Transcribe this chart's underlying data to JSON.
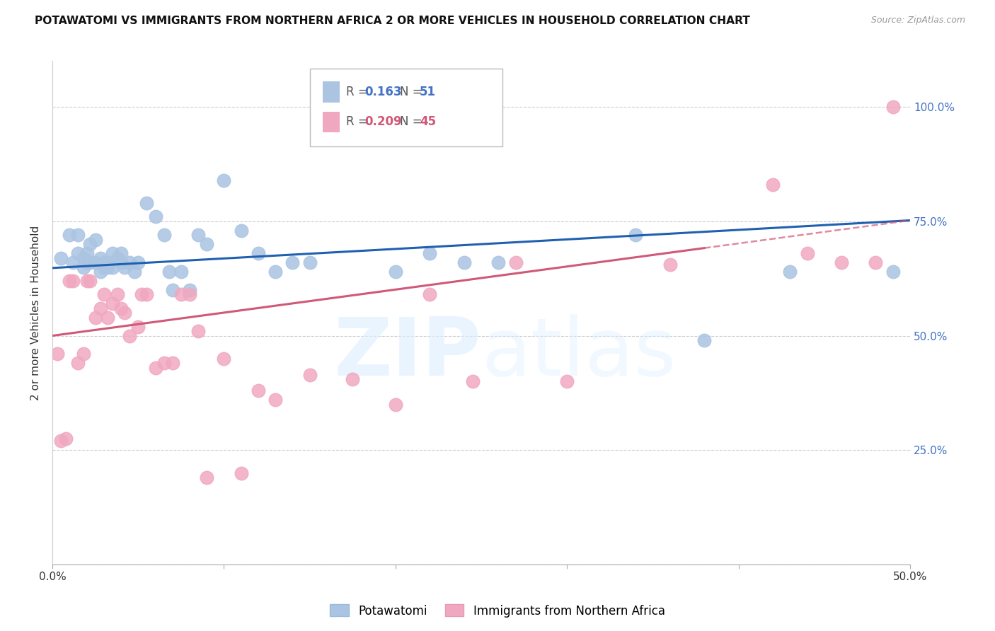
{
  "title": "POTAWATOMI VS IMMIGRANTS FROM NORTHERN AFRICA 2 OR MORE VEHICLES IN HOUSEHOLD CORRELATION CHART",
  "source": "Source: ZipAtlas.com",
  "ylabel": "2 or more Vehicles in Household",
  "xlim": [
    0.0,
    0.5
  ],
  "ylim": [
    0.0,
    1.1
  ],
  "blue_R": 0.163,
  "blue_N": 51,
  "pink_R": 0.209,
  "pink_N": 45,
  "blue_color": "#aac4e2",
  "pink_color": "#f0a8c0",
  "blue_line_color": "#2060b0",
  "pink_line_color": "#d05878",
  "blue_line_y0": 0.648,
  "blue_line_y1": 0.752,
  "pink_line_y0": 0.5,
  "pink_line_y1": 0.752,
  "blue_points_x": [
    0.005,
    0.01,
    0.012,
    0.015,
    0.015,
    0.018,
    0.018,
    0.02,
    0.02,
    0.022,
    0.022,
    0.025,
    0.025,
    0.028,
    0.028,
    0.03,
    0.03,
    0.032,
    0.032,
    0.035,
    0.035,
    0.038,
    0.04,
    0.04,
    0.042,
    0.045,
    0.048,
    0.05,
    0.055,
    0.06,
    0.065,
    0.068,
    0.07,
    0.075,
    0.08,
    0.085,
    0.09,
    0.1,
    0.11,
    0.12,
    0.13,
    0.14,
    0.15,
    0.2,
    0.22,
    0.24,
    0.26,
    0.34,
    0.38,
    0.43,
    0.49
  ],
  "blue_points_y": [
    0.67,
    0.72,
    0.66,
    0.72,
    0.68,
    0.67,
    0.65,
    0.68,
    0.66,
    0.7,
    0.66,
    0.71,
    0.66,
    0.67,
    0.64,
    0.66,
    0.65,
    0.66,
    0.65,
    0.65,
    0.68,
    0.67,
    0.68,
    0.66,
    0.65,
    0.66,
    0.64,
    0.66,
    0.79,
    0.76,
    0.72,
    0.64,
    0.6,
    0.64,
    0.6,
    0.72,
    0.7,
    0.84,
    0.73,
    0.68,
    0.64,
    0.66,
    0.66,
    0.64,
    0.68,
    0.66,
    0.66,
    0.72,
    0.49,
    0.64,
    0.64
  ],
  "pink_points_x": [
    0.003,
    0.005,
    0.008,
    0.01,
    0.012,
    0.015,
    0.018,
    0.02,
    0.022,
    0.025,
    0.028,
    0.03,
    0.032,
    0.035,
    0.038,
    0.04,
    0.042,
    0.045,
    0.05,
    0.052,
    0.055,
    0.06,
    0.065,
    0.07,
    0.075,
    0.08,
    0.085,
    0.09,
    0.1,
    0.11,
    0.12,
    0.13,
    0.15,
    0.175,
    0.2,
    0.22,
    0.245,
    0.27,
    0.3,
    0.36,
    0.42,
    0.44,
    0.46,
    0.48,
    0.49
  ],
  "pink_points_y": [
    0.46,
    0.27,
    0.275,
    0.62,
    0.62,
    0.44,
    0.46,
    0.62,
    0.62,
    0.54,
    0.56,
    0.59,
    0.54,
    0.57,
    0.59,
    0.56,
    0.55,
    0.5,
    0.52,
    0.59,
    0.59,
    0.43,
    0.44,
    0.44,
    0.59,
    0.59,
    0.51,
    0.19,
    0.45,
    0.2,
    0.38,
    0.36,
    0.415,
    0.405,
    0.35,
    0.59,
    0.4,
    0.66,
    0.4,
    0.655,
    0.83,
    0.68,
    0.66,
    0.66,
    1.0
  ]
}
